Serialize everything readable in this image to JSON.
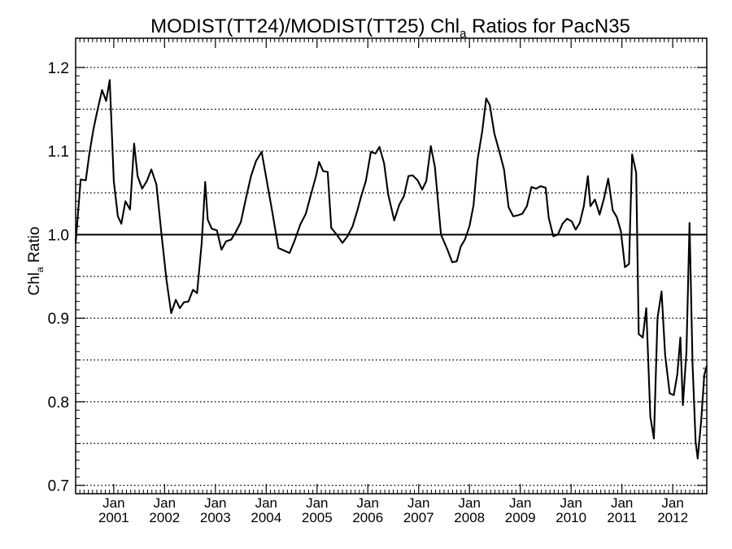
{
  "chart_data": {
    "type": "line",
    "title": {
      "prefix": "MODIST(TT24)/MODIST(TT25)  Chl",
      "subscript": "a",
      "suffix": " Ratios for PacN35"
    },
    "ylabel": {
      "main": "Chl",
      "subscript": "a",
      "suffix": " Ratio"
    },
    "xlim": [
      2000.25,
      2012.67
    ],
    "ylim": [
      0.69,
      1.235
    ],
    "y_ticks": [
      {
        "value": 0.7,
        "label": "0.7"
      },
      {
        "value": 0.8,
        "label": "0.8"
      },
      {
        "value": 0.9,
        "label": "0.9"
      },
      {
        "value": 1.0,
        "label": "1.0"
      },
      {
        "value": 1.1,
        "label": "1.1"
      },
      {
        "value": 1.2,
        "label": "1.2"
      }
    ],
    "y_minor_gridlines": [
      0.75,
      0.85,
      0.95,
      1.05,
      1.15
    ],
    "x_ticks": [
      {
        "value": 2001,
        "month": "Jan",
        "year": "2001"
      },
      {
        "value": 2002,
        "month": "Jan",
        "year": "2002"
      },
      {
        "value": 2003,
        "month": "Jan",
        "year": "2003"
      },
      {
        "value": 2004,
        "month": "Jan",
        "year": "2004"
      },
      {
        "value": 2005,
        "month": "Jan",
        "year": "2005"
      },
      {
        "value": 2006,
        "month": "Jan",
        "year": "2006"
      },
      {
        "value": 2007,
        "month": "Jan",
        "year": "2007"
      },
      {
        "value": 2008,
        "month": "Jan",
        "year": "2008"
      },
      {
        "value": 2009,
        "month": "Jan",
        "year": "2009"
      },
      {
        "value": 2010,
        "month": "Jan",
        "year": "2010"
      },
      {
        "value": 2011,
        "month": "Jan",
        "year": "2011"
      },
      {
        "value": 2012,
        "month": "Jan",
        "year": "2012"
      }
    ],
    "reference_line": 1.0,
    "grid": "horizontal dotted",
    "series": [
      {
        "values": [
          [
            2000.25,
            0.99
          ],
          [
            2000.35,
            1.066
          ],
          [
            2000.45,
            1.065
          ],
          [
            2000.52,
            1.097
          ],
          [
            2000.6,
            1.126
          ],
          [
            2000.67,
            1.146
          ],
          [
            2000.77,
            1.173
          ],
          [
            2000.85,
            1.16
          ],
          [
            2000.92,
            1.185
          ],
          [
            2001.0,
            1.064
          ],
          [
            2001.08,
            1.022
          ],
          [
            2001.15,
            1.013
          ],
          [
            2001.23,
            1.04
          ],
          [
            2001.32,
            1.03
          ],
          [
            2001.4,
            1.109
          ],
          [
            2001.47,
            1.07
          ],
          [
            2001.56,
            1.055
          ],
          [
            2001.65,
            1.064
          ],
          [
            2001.74,
            1.078
          ],
          [
            2001.84,
            1.06
          ],
          [
            2001.94,
            1.0
          ],
          [
            2002.04,
            0.945
          ],
          [
            2002.13,
            0.906
          ],
          [
            2002.22,
            0.922
          ],
          [
            2002.3,
            0.912
          ],
          [
            2002.38,
            0.919
          ],
          [
            2002.47,
            0.92
          ],
          [
            2002.56,
            0.934
          ],
          [
            2002.64,
            0.93
          ],
          [
            2002.73,
            0.99
          ],
          [
            2002.8,
            1.063
          ],
          [
            2002.85,
            1.018
          ],
          [
            2002.93,
            1.007
          ],
          [
            2003.03,
            1.005
          ],
          [
            2003.12,
            0.982
          ],
          [
            2003.21,
            0.992
          ],
          [
            2003.31,
            0.994
          ],
          [
            2003.4,
            1.003
          ],
          [
            2003.5,
            1.015
          ],
          [
            2003.6,
            1.043
          ],
          [
            2003.7,
            1.07
          ],
          [
            2003.8,
            1.088
          ],
          [
            2003.91,
            1.099
          ],
          [
            2004.01,
            1.065
          ],
          [
            2004.12,
            1.027
          ],
          [
            2004.24,
            0.984
          ],
          [
            2004.35,
            0.981
          ],
          [
            2004.46,
            0.978
          ],
          [
            2004.56,
            0.993
          ],
          [
            2004.67,
            1.012
          ],
          [
            2004.78,
            1.025
          ],
          [
            2004.88,
            1.048
          ],
          [
            2004.98,
            1.07
          ],
          [
            2005.04,
            1.087
          ],
          [
            2005.12,
            1.076
          ],
          [
            2005.21,
            1.075
          ],
          [
            2005.28,
            1.008
          ],
          [
            2005.4,
            0.999
          ],
          [
            2005.5,
            0.99
          ],
          [
            2005.6,
            0.998
          ],
          [
            2005.7,
            1.01
          ],
          [
            2005.79,
            1.028
          ],
          [
            2005.87,
            1.046
          ],
          [
            2005.96,
            1.064
          ],
          [
            2006.06,
            1.099
          ],
          [
            2006.15,
            1.097
          ],
          [
            2006.23,
            1.105
          ],
          [
            2006.32,
            1.085
          ],
          [
            2006.4,
            1.048
          ],
          [
            2006.52,
            1.017
          ],
          [
            2006.62,
            1.036
          ],
          [
            2006.71,
            1.046
          ],
          [
            2006.8,
            1.07
          ],
          [
            2006.88,
            1.071
          ],
          [
            2006.98,
            1.065
          ],
          [
            2007.07,
            1.054
          ],
          [
            2007.15,
            1.064
          ],
          [
            2007.24,
            1.106
          ],
          [
            2007.32,
            1.081
          ],
          [
            2007.44,
            1.0
          ],
          [
            2007.56,
            0.983
          ],
          [
            2007.66,
            0.967
          ],
          [
            2007.75,
            0.968
          ],
          [
            2007.83,
            0.986
          ],
          [
            2007.91,
            0.994
          ],
          [
            2008.0,
            1.01
          ],
          [
            2008.08,
            1.035
          ],
          [
            2008.16,
            1.09
          ],
          [
            2008.25,
            1.123
          ],
          [
            2008.33,
            1.163
          ],
          [
            2008.4,
            1.155
          ],
          [
            2008.49,
            1.121
          ],
          [
            2008.58,
            1.101
          ],
          [
            2008.68,
            1.078
          ],
          [
            2008.77,
            1.033
          ],
          [
            2008.86,
            1.022
          ],
          [
            2008.95,
            1.023
          ],
          [
            2009.04,
            1.025
          ],
          [
            2009.13,
            1.034
          ],
          [
            2009.22,
            1.057
          ],
          [
            2009.31,
            1.055
          ],
          [
            2009.4,
            1.058
          ],
          [
            2009.5,
            1.056
          ],
          [
            2009.56,
            1.02
          ],
          [
            2009.65,
            0.998
          ],
          [
            2009.74,
            1.0
          ],
          [
            2009.83,
            1.013
          ],
          [
            2009.92,
            1.019
          ],
          [
            2010.01,
            1.016
          ],
          [
            2010.09,
            1.006
          ],
          [
            2010.17,
            1.014
          ],
          [
            2010.25,
            1.034
          ],
          [
            2010.33,
            1.07
          ],
          [
            2010.38,
            1.034
          ],
          [
            2010.47,
            1.042
          ],
          [
            2010.56,
            1.024
          ],
          [
            2010.65,
            1.044
          ],
          [
            2010.73,
            1.067
          ],
          [
            2010.82,
            1.029
          ],
          [
            2010.9,
            1.021
          ],
          [
            2010.98,
            1.004
          ],
          [
            2011.06,
            0.961
          ],
          [
            2011.14,
            0.965
          ],
          [
            2011.2,
            1.096
          ],
          [
            2011.28,
            1.074
          ],
          [
            2011.33,
            0.881
          ],
          [
            2011.41,
            0.877
          ],
          [
            2011.48,
            0.912
          ],
          [
            2011.56,
            0.782
          ],
          [
            2011.63,
            0.756
          ],
          [
            2011.7,
            0.9
          ],
          [
            2011.78,
            0.932
          ],
          [
            2011.85,
            0.856
          ],
          [
            2011.94,
            0.81
          ],
          [
            2012.02,
            0.808
          ],
          [
            2012.09,
            0.833
          ],
          [
            2012.15,
            0.877
          ],
          [
            2012.2,
            0.796
          ],
          [
            2012.27,
            0.86
          ],
          [
            2012.33,
            1.014
          ],
          [
            2012.39,
            0.845
          ],
          [
            2012.45,
            0.752
          ],
          [
            2012.49,
            0.732
          ],
          [
            2012.56,
            0.777
          ],
          [
            2012.62,
            0.832
          ],
          [
            2012.67,
            0.843
          ]
        ]
      }
    ]
  }
}
